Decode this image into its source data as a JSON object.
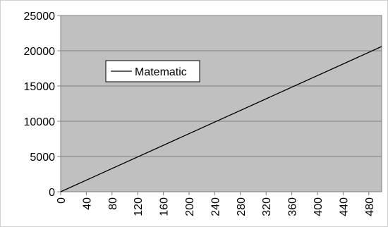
{
  "chart_data": {
    "type": "line",
    "title": "",
    "xlabel": "",
    "ylabel": "",
    "xlim": [
      0,
      500
    ],
    "ylim": [
      0,
      25000
    ],
    "x_ticks": [
      0,
      40,
      80,
      120,
      160,
      200,
      240,
      280,
      320,
      360,
      400,
      440,
      480
    ],
    "y_ticks": [
      0,
      5000,
      10000,
      15000,
      20000,
      25000
    ],
    "grid": true,
    "plot_background": "#c0c0c0",
    "legend_position": "upper-left inside plot",
    "series": [
      {
        "name": "Matematic",
        "color": "#000000",
        "x": [
          0,
          500
        ],
        "y": [
          0,
          20600
        ]
      }
    ]
  }
}
